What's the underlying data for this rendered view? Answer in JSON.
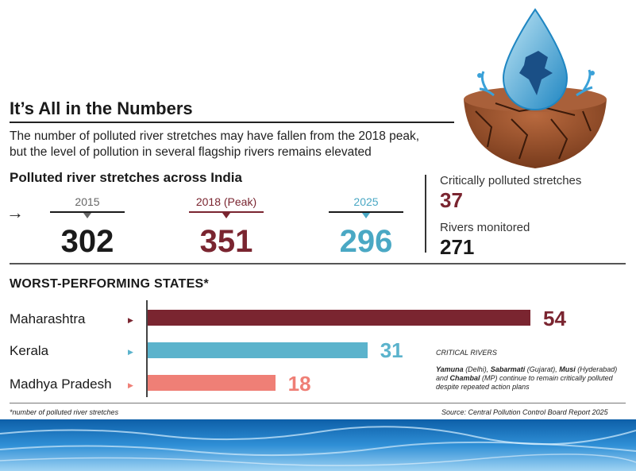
{
  "header": {
    "title": "It’s All in the Numbers",
    "subtitle_line1": "The number of polluted river stretches may have fallen from the 2018 peak,",
    "subtitle_line2": "but the level of pollution in several flagship rivers remains elevated"
  },
  "stretches": {
    "heading": "Polluted river stretches across India",
    "arrow": "→",
    "years": [
      {
        "label": "2015",
        "value": "302",
        "color": "#1a1a1a",
        "label_color": "#666666",
        "line_color": "#1a1a1a"
      },
      {
        "label": "2018 (Peak)",
        "value": "351",
        "color": "#7a2530",
        "label_color": "#7a2530",
        "line_color": "#7a2530"
      },
      {
        "label": "2025",
        "value": "296",
        "color": "#4aa8c4",
        "label_color": "#4aa8c4",
        "line_color": "#1a1a1a"
      }
    ]
  },
  "side": {
    "critical_label": "Critically polluted stretches",
    "critical_value": "37",
    "monitored_label": "Rivers monitored",
    "monitored_value": "271"
  },
  "states_heading": "WORST-PERFORMING STATES*",
  "chart_data": {
    "type": "bar",
    "orientation": "horizontal",
    "title": "WORST-PERFORMING STATES*",
    "categories": [
      "Maharashtra",
      "Kerala",
      "Madhya Pradesh"
    ],
    "values": [
      54,
      31,
      18
    ],
    "colors": [
      "#7a2530",
      "#5bb3cc",
      "#ef7f76"
    ],
    "xlim": [
      0,
      54
    ]
  },
  "critical_rivers": {
    "heading": "CRITICAL RIVERS",
    "text": "Yamuna (Delhi), Sabarmati (Gujarat), Musi (Hyderabad) and Chambal (MP) continue to remain critically polluted despite repeated action plans"
  },
  "footer": {
    "note": "*number of polluted river stretches",
    "source": "Source: Central Pollution Control Board Report 2025"
  }
}
